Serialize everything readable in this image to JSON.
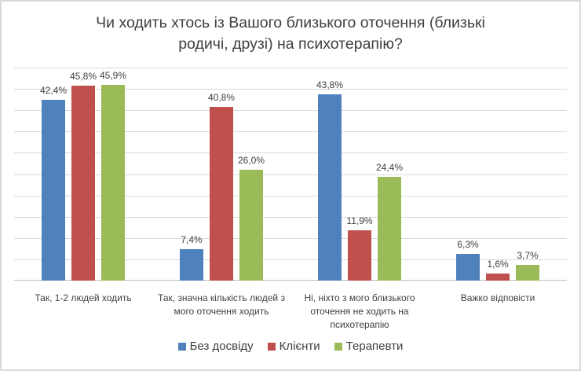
{
  "chart_data": {
    "type": "bar",
    "title": "Чи ходить хтось із Вашого близького оточення (близькі родичі, друзі) на психотерапію?",
    "title_lines": [
      "Чи ходить хтось із Вашого близького оточення (близькі",
      "родичі, друзі) на психотерапію?"
    ],
    "categories": [
      "Так, 1-2 людей ходить",
      "Так, значна кількість людей з мого оточення ходить",
      "Ні, ніхто з мого близького оточення не ходить на психотерапію",
      "Важко відповісти"
    ],
    "category_lines": [
      [
        "Так, 1-2 людей ходить"
      ],
      [
        "Так, значна кількість людей з",
        "мого оточення ходить"
      ],
      [
        "Ні, ніхто з мого близького",
        "оточення не ходить на",
        "психотерапію"
      ],
      [
        "Важко відповісти"
      ]
    ],
    "series": [
      {
        "name": "Без досвіду",
        "color": "#4f81bd",
        "values": [
          42.4,
          7.4,
          43.8,
          6.3
        ],
        "labels": [
          "42,4%",
          "7,4%",
          "43,8%",
          "6,3%"
        ]
      },
      {
        "name": "Клієнти",
        "color": "#c0504d",
        "values": [
          45.8,
          40.8,
          11.9,
          1.6
        ],
        "labels": [
          "45,8%",
          "40,8%",
          "11,9%",
          "1,6%"
        ]
      },
      {
        "name": "Терапевти",
        "color": "#9bbb59",
        "values": [
          45.9,
          26.0,
          24.4,
          3.7
        ],
        "labels": [
          "45,9%",
          "26,0%",
          "24,4%",
          "3,7%"
        ]
      }
    ],
    "xlabel": "",
    "ylabel": "",
    "ylim": [
      0,
      50
    ],
    "y_gridlines": 10,
    "grid": true,
    "legend_position": "bottom",
    "y_axis_visible": false
  }
}
